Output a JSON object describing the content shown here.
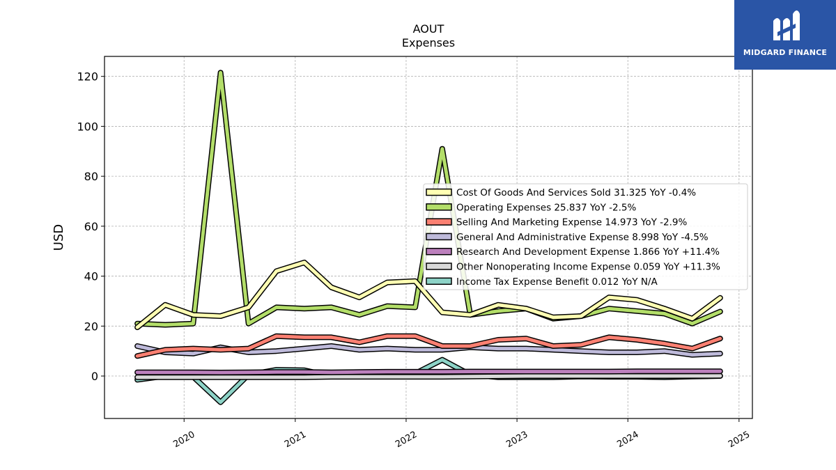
{
  "brand": {
    "name": "MIDGARD FINANCE",
    "bg_color": "#2a55a6"
  },
  "chart_data": {
    "type": "line",
    "title": "AOUT",
    "subtitle": "Expenses",
    "xlabel": "",
    "ylabel": "USD",
    "ylim": [
      -17,
      128
    ],
    "yticks": [
      0,
      20,
      40,
      60,
      80,
      100,
      120
    ],
    "xticks": [
      "2020",
      "2021",
      "2022",
      "2023",
      "2024",
      "2025"
    ],
    "grid": true,
    "legend_position": "center-right",
    "x": [
      "2019-07-31",
      "2019-10-31",
      "2020-01-31",
      "2020-04-30",
      "2020-07-31",
      "2020-10-31",
      "2021-01-31",
      "2021-04-30",
      "2021-07-31",
      "2021-10-31",
      "2022-01-31",
      "2022-04-30",
      "2022-07-31",
      "2022-10-31",
      "2023-01-31",
      "2023-04-30",
      "2023-07-31",
      "2023-10-31",
      "2024-01-31",
      "2024-04-30",
      "2024-07-31",
      "2024-10-31"
    ],
    "series": [
      {
        "name": "Cost Of Goods And Services Sold",
        "legend": "Cost Of Goods And Services Sold  31.325 YoY -0.4%",
        "color": "#ffffb3",
        "values": [
          19.5,
          28.5,
          24.5,
          24.0,
          27.5,
          42.0,
          45.5,
          35.5,
          31.5,
          37.5,
          38.0,
          25.5,
          24.5,
          28.5,
          27.0,
          23.5,
          24.0,
          31.5,
          30.5,
          27.0,
          23.0,
          31.3
        ]
      },
      {
        "name": "Operating Expenses",
        "legend": "Operating Expenses  25.837 YoY -2.5%",
        "color": "#b3de69",
        "values": [
          21.0,
          20.5,
          21.0,
          121.5,
          21.0,
          27.5,
          27.0,
          27.5,
          24.5,
          28.0,
          27.5,
          91.0,
          24.5,
          26.0,
          27.0,
          23.0,
          24.0,
          27.0,
          26.0,
          25.0,
          21.0,
          25.8
        ]
      },
      {
        "name": "Selling And Marketing Expense",
        "legend": "Selling And Marketing Expense  14.973 YoY -2.9%",
        "color": "#fb8072",
        "values": [
          8.0,
          10.5,
          11.0,
          10.5,
          11.0,
          16.0,
          15.5,
          15.5,
          13.5,
          16.0,
          16.0,
          12.0,
          12.0,
          14.5,
          15.0,
          12.0,
          12.5,
          15.5,
          14.5,
          13.0,
          11.0,
          15.0
        ]
      },
      {
        "name": "General And Administrative Expense",
        "legend": "General And Administrative Expense  8.998 YoY -4.5%",
        "color": "#bebada",
        "values": [
          12.0,
          9.5,
          9.0,
          11.5,
          9.5,
          10.0,
          11.0,
          12.0,
          10.5,
          11.0,
          10.5,
          10.5,
          11.5,
          11.0,
          11.0,
          10.5,
          10.0,
          9.5,
          9.5,
          10.0,
          8.5,
          9.0
        ]
      },
      {
        "name": "Research And Development Expense",
        "legend": "Research And Development Expense  1.866 YoY +11.4%",
        "color": "#bc80bd",
        "values": [
          1.5,
          1.5,
          1.5,
          1.4,
          1.5,
          1.6,
          1.6,
          1.5,
          1.6,
          1.7,
          1.7,
          1.7,
          1.8,
          1.8,
          1.8,
          1.8,
          1.8,
          1.8,
          1.9,
          1.9,
          1.9,
          1.9
        ]
      },
      {
        "name": "Other Nonoperating Income Expense",
        "legend": "Other Nonoperating Income Expense  0.059 YoY +11.3%",
        "color": "#d9d9d9",
        "values": [
          -0.5,
          -0.5,
          -0.5,
          -0.5,
          -0.5,
          -0.5,
          -0.5,
          -0.3,
          -0.3,
          -0.3,
          -0.3,
          -0.3,
          -0.2,
          -0.1,
          0.0,
          0.0,
          0.0,
          0.0,
          0.0,
          0.0,
          0.05,
          0.06
        ]
      },
      {
        "name": "Income Tax Expense Benefit",
        "legend": "Income Tax Expense Benefit  0.012 YoY N/A",
        "color": "#8dd3c7",
        "values": [
          -1.5,
          0.0,
          -0.3,
          -10.5,
          0.5,
          2.5,
          2.3,
          0.0,
          1.0,
          1.5,
          1.0,
          6.5,
          0.5,
          -0.5,
          -0.5,
          -0.5,
          -0.2,
          -0.3,
          -0.3,
          -0.5,
          -0.2,
          0.0
        ]
      }
    ]
  }
}
